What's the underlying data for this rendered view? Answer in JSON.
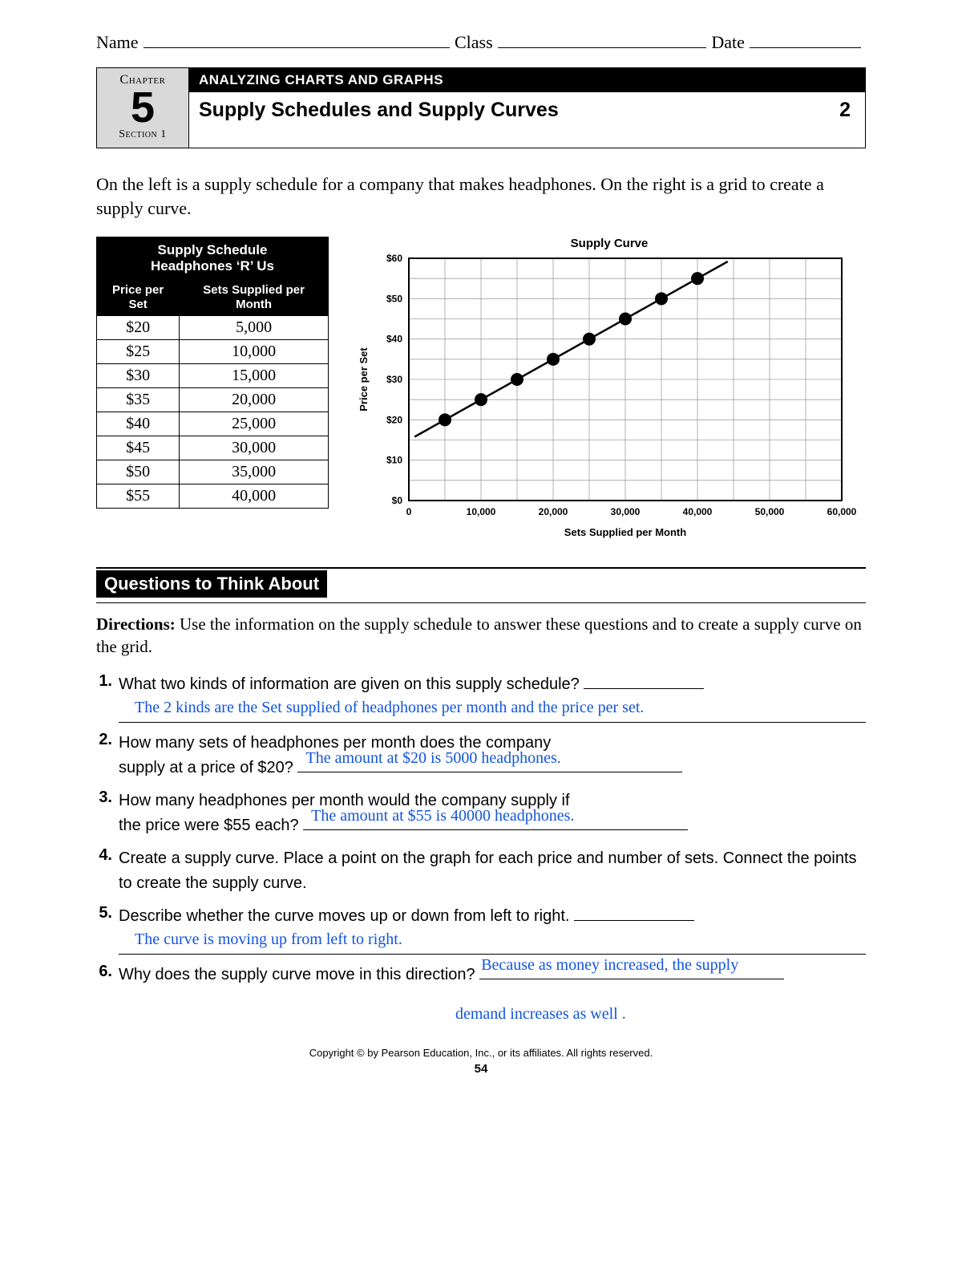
{
  "header": {
    "name": "Name",
    "class": "Class",
    "date": "Date"
  },
  "chapter": {
    "label": "Chapter",
    "num": "5",
    "section": "Section 1"
  },
  "title": {
    "bar": "ANALYZING CHARTS AND GRAPHS",
    "sub": "Supply Schedules and Supply Curves",
    "badge": "2"
  },
  "intro": "On the left is a supply schedule for a company that makes headphones. On the right is a grid to create a supply curve.",
  "table": {
    "title1": "Supply Schedule",
    "title2": "Headphones ‘R’ Us",
    "col1": "Price per Set",
    "col2": "Sets Supplied per Month",
    "rows": [
      [
        "$20",
        "5,000"
      ],
      [
        "$25",
        "10,000"
      ],
      [
        "$30",
        "15,000"
      ],
      [
        "$35",
        "20,000"
      ],
      [
        "$40",
        "25,000"
      ],
      [
        "$45",
        "30,000"
      ],
      [
        "$50",
        "35,000"
      ],
      [
        "$55",
        "40,000"
      ]
    ]
  },
  "chart": {
    "type": "scatter-line",
    "title": "Supply Curve",
    "xlabel": "Sets Supplied per Month",
    "ylabel": "Price per Set",
    "xlim": [
      0,
      60000
    ],
    "ylim": [
      0,
      60
    ],
    "xtick_step": 10000,
    "xtick_minor": 5000,
    "ytick_step": 10,
    "ytick_minor": 5,
    "xtick_labels": [
      "0",
      "10,000",
      "20,000",
      "30,000",
      "40,000",
      "50,000",
      "60,000"
    ],
    "ytick_labels": [
      "$0",
      "$10",
      "$20",
      "$30",
      "$40",
      "$50",
      "$60"
    ],
    "points": [
      {
        "x": 5000,
        "y": 20
      },
      {
        "x": 10000,
        "y": 25
      },
      {
        "x": 15000,
        "y": 30
      },
      {
        "x": 20000,
        "y": 35
      },
      {
        "x": 25000,
        "y": 40
      },
      {
        "x": 30000,
        "y": 45
      },
      {
        "x": 35000,
        "y": 50
      },
      {
        "x": 40000,
        "y": 55
      }
    ],
    "marker_r": 8,
    "marker_color": "#000000",
    "line_color": "#000000",
    "line_width": 2.5,
    "grid_color": "#a0a0a0",
    "grid_width": 0.8,
    "border_color": "#000000",
    "border_width": 2,
    "background_color": "#ffffff",
    "label_fontsize": 13,
    "tick_fontsize": 12,
    "tick_weight": "bold"
  },
  "qsection": {
    "header": "Questions to Think About",
    "directions_label": "Directions:",
    "directions": " Use the information on the supply schedule to answer these questions and to create a supply curve on the grid.",
    "items": [
      {
        "n": "1.",
        "text": "What two kinds of information are given on this supply schedule?",
        "answer_full": "The 2 kinds are the Set supplied of headphones per month and the price per set."
      },
      {
        "n": "2.",
        "text1": "How many sets of headphones per month does the company",
        "text2": "supply at a price of $20?",
        "answer_inline": "The amount at $20 is 5000 headphones."
      },
      {
        "n": "3.",
        "text1": "How many headphones per month would the company supply if",
        "text2": "the price were $55 each?",
        "answer_inline": "The amount at $55 is 40000 headphones."
      },
      {
        "n": "4.",
        "text": "Create a supply curve. Place a point on the graph for each price and number of sets. Connect the points to create the supply curve."
      },
      {
        "n": "5.",
        "text": "Describe whether the curve moves up or down from left to right.",
        "answer_full": "The curve is moving up from left to right."
      },
      {
        "n": "6.",
        "text": "Why does the supply curve move in this direction?",
        "answer_inline": "Because as money increased, the supply",
        "answer_trail": "demand increases as well ."
      }
    ]
  },
  "footer": {
    "copyright": "Copyright © by Pearson Education, Inc., or its affiliates.  All rights reserved.",
    "page": "54"
  }
}
